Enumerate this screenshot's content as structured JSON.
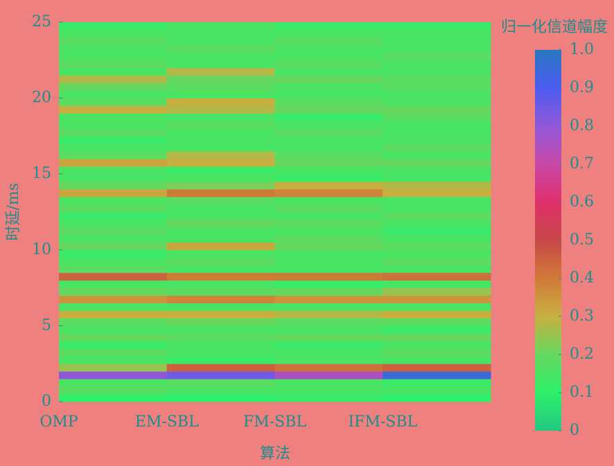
{
  "chart_data": {
    "type": "heatmap",
    "x_label": "算法",
    "y_label": "时延/ms",
    "colorbar_label": "归一化信道幅度",
    "categories": [
      "OMP",
      "EM-SBL",
      "FM-SBL",
      "IFM-SBL"
    ],
    "y": [
      0,
      0.5,
      1,
      1.5,
      2,
      2.5,
      3,
      3.5,
      4,
      4.5,
      5,
      5.5,
      6,
      6.5,
      7,
      7.5,
      8,
      8.5,
      9,
      9.5,
      10,
      10.5,
      11,
      11.5,
      12,
      12.5,
      13,
      13.5,
      14,
      14.5,
      15,
      15.5,
      16,
      16.5,
      17,
      17.5,
      18,
      18.5,
      19,
      19.5,
      20,
      20.5,
      21,
      21.5,
      22,
      22.5,
      23,
      23.5,
      24,
      24.5
    ],
    "values": [
      [
        0.1,
        0.1,
        0.12,
        0.1
      ],
      [
        0.18,
        0.15,
        0.15,
        0.15
      ],
      [
        0.15,
        0.18,
        0.15,
        0.12
      ],
      [
        0.8,
        0.85,
        0.75,
        0.95
      ],
      [
        0.25,
        0.45,
        0.42,
        0.45
      ],
      [
        0.15,
        0.12,
        0.15,
        0.15
      ],
      [
        0.18,
        0.15,
        0.15,
        0.18
      ],
      [
        0.12,
        0.15,
        0.12,
        0.15
      ],
      [
        0.2,
        0.18,
        0.2,
        0.2
      ],
      [
        0.15,
        0.15,
        0.15,
        0.12
      ],
      [
        0.18,
        0.2,
        0.18,
        0.18
      ],
      [
        0.3,
        0.3,
        0.28,
        0.3
      ],
      [
        0.15,
        0.15,
        0.15,
        0.15
      ],
      [
        0.35,
        0.38,
        0.35,
        0.35
      ],
      [
        0.2,
        0.18,
        0.2,
        0.25
      ],
      [
        0.15,
        0.15,
        0.12,
        0.15
      ],
      [
        0.45,
        0.4,
        0.4,
        0.42
      ],
      [
        0.18,
        0.15,
        0.15,
        0.15
      ],
      [
        0.15,
        0.18,
        0.15,
        0.18
      ],
      [
        0.12,
        0.15,
        0.15,
        0.15
      ],
      [
        0.2,
        0.32,
        0.2,
        0.18
      ],
      [
        0.15,
        0.15,
        0.18,
        0.15
      ],
      [
        0.18,
        0.15,
        0.15,
        0.12
      ],
      [
        0.15,
        0.2,
        0.18,
        0.15
      ],
      [
        0.12,
        0.15,
        0.15,
        0.18
      ],
      [
        0.18,
        0.15,
        0.18,
        0.15
      ],
      [
        0.15,
        0.18,
        0.15,
        0.15
      ],
      [
        0.32,
        0.4,
        0.38,
        0.3
      ],
      [
        0.2,
        0.22,
        0.3,
        0.28
      ],
      [
        0.15,
        0.15,
        0.12,
        0.15
      ],
      [
        0.15,
        0.12,
        0.15,
        0.15
      ],
      [
        0.32,
        0.3,
        0.2,
        0.2
      ],
      [
        0.18,
        0.28,
        0.18,
        0.15
      ],
      [
        0.15,
        0.15,
        0.15,
        0.18
      ],
      [
        0.12,
        0.15,
        0.15,
        0.15
      ],
      [
        0.18,
        0.15,
        0.18,
        0.15
      ],
      [
        0.15,
        0.18,
        0.15,
        0.15
      ],
      [
        0.15,
        0.15,
        0.12,
        0.18
      ],
      [
        0.3,
        0.28,
        0.2,
        0.2
      ],
      [
        0.18,
        0.3,
        0.18,
        0.15
      ],
      [
        0.15,
        0.15,
        0.15,
        0.15
      ],
      [
        0.2,
        0.18,
        0.15,
        0.18
      ],
      [
        0.28,
        0.2,
        0.2,
        0.18
      ],
      [
        0.15,
        0.28,
        0.15,
        0.15
      ],
      [
        0.18,
        0.15,
        0.18,
        0.15
      ],
      [
        0.15,
        0.15,
        0.15,
        0.18
      ],
      [
        0.15,
        0.18,
        0.15,
        0.15
      ],
      [
        0.18,
        0.15,
        0.18,
        0.15
      ],
      [
        0.15,
        0.15,
        0.15,
        0.15
      ],
      [
        0.12,
        0.15,
        0.12,
        0.12
      ]
    ],
    "ylim": [
      0,
      25
    ],
    "yticks": [
      0,
      5,
      10,
      15,
      20,
      25
    ],
    "colorbar_lim": [
      0,
      1
    ],
    "colorbar_ticks": [
      0,
      0.1,
      0.2,
      0.3,
      0.4,
      0.5,
      0.6,
      0.7,
      0.8,
      0.9,
      {
        "value": 1,
        "label": "1.0"
      }
    ],
    "colormap": [
      {
        "value": 0,
        "color": "#22c880"
      },
      {
        "value": 0.1,
        "color": "#2ef06a"
      },
      {
        "value": 0.2,
        "color": "#66d860"
      },
      {
        "value": 0.3,
        "color": "#c8b040"
      },
      {
        "value": 0.4,
        "color": "#d07a38"
      },
      {
        "value": 0.5,
        "color": "#c84848"
      },
      {
        "value": 0.6,
        "color": "#e0306a"
      },
      {
        "value": 0.7,
        "color": "#c848a8"
      },
      {
        "value": 0.8,
        "color": "#9058d8"
      },
      {
        "value": 0.9,
        "color": "#4c5cf0"
      },
      {
        "value": 1,
        "color": "#2878c0"
      }
    ]
  }
}
